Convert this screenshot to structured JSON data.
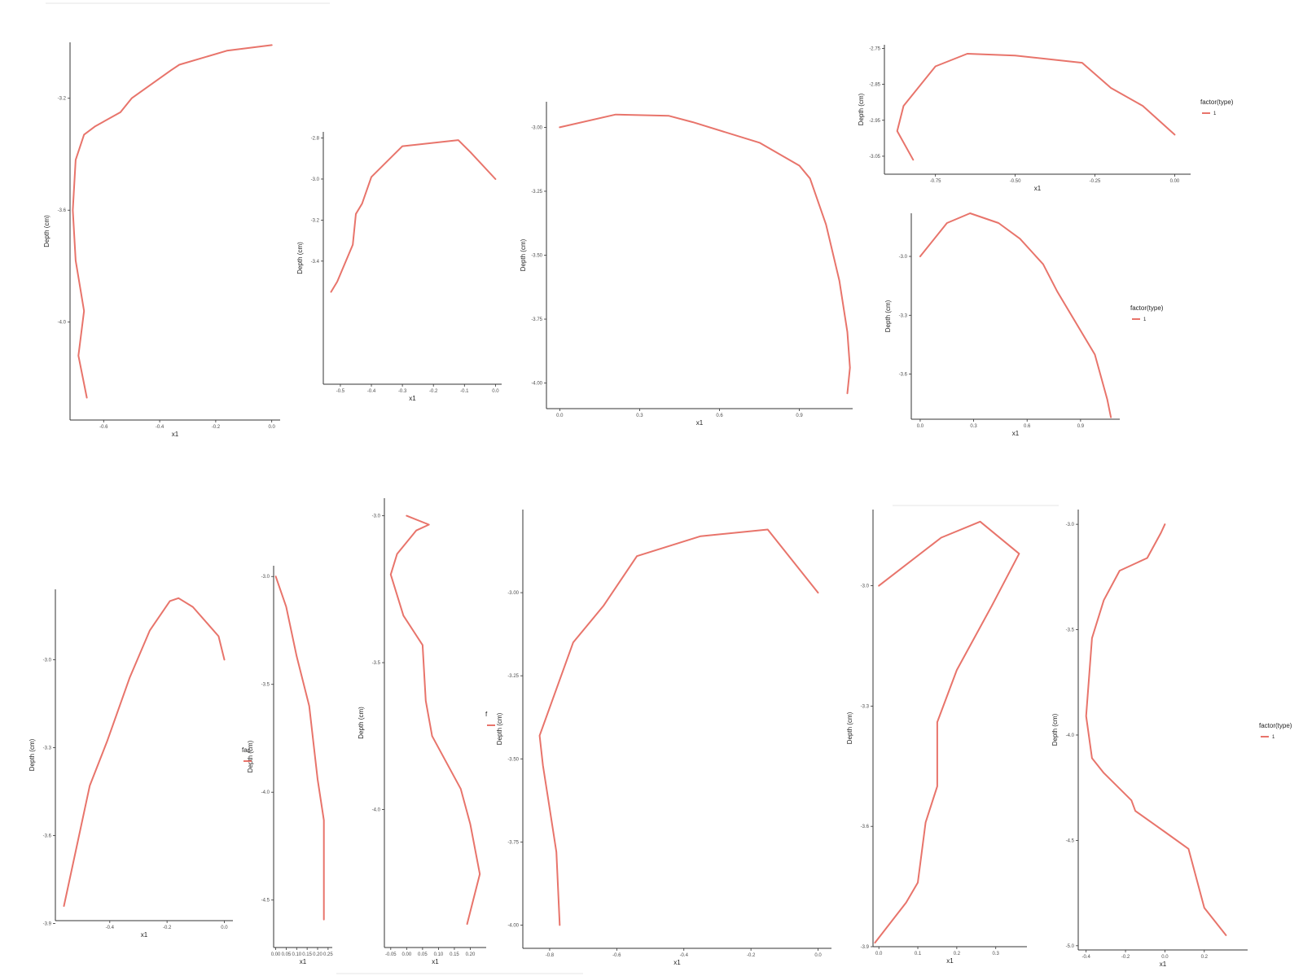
{
  "series_color": "#e8746b",
  "chart_data": [
    {
      "type": "line",
      "xlabel": "x1",
      "ylabel": "Depth (cm)",
      "xlim": [
        -0.72,
        0.03
      ],
      "ylim": [
        -4.35,
        -3.0
      ],
      "xticks": [
        -0.6,
        -0.4,
        -0.2,
        0.0
      ],
      "yticks": [
        -3.2,
        -3.6,
        -4.0
      ],
      "xtick_labels": [
        "-0.6",
        "-0.4",
        "-0.2",
        "0.0"
      ],
      "ytick_labels": [
        "-3.2",
        "-3.6",
        "-4.0"
      ],
      "series": [
        {
          "x": [
            0.0,
            -0.16,
            -0.33,
            -0.36,
            -0.5,
            -0.54,
            -0.63,
            -0.67,
            -0.7,
            -0.71,
            -0.7,
            -0.67,
            -0.69,
            -0.66
          ],
          "y": [
            -3.01,
            -3.03,
            -3.08,
            -3.1,
            -3.2,
            -3.25,
            -3.3,
            -3.33,
            -3.42,
            -3.6,
            -3.78,
            -3.96,
            -4.12,
            -4.27
          ]
        }
      ]
    },
    {
      "type": "line",
      "xlabel": "x1",
      "ylabel": "Depth (cm)",
      "xlim": [
        -0.555,
        0.02
      ],
      "ylim": [
        -4.0,
        -2.77
      ],
      "xticks": [
        -0.5,
        -0.4,
        -0.3,
        -0.2,
        -0.1,
        0.0
      ],
      "yticks": [
        -2.8,
        -3.0,
        -3.2,
        -3.4
      ],
      "xtick_labels": [
        "-0.5",
        "-0.4",
        "-0.3",
        "-0.2",
        "-0.1",
        "0.0"
      ],
      "ytick_labels": [
        "-2.8",
        "-3.0",
        "-3.2",
        "-3.4"
      ],
      "series": [
        {
          "x": [
            0.0,
            -0.08,
            -0.12,
            -0.3,
            -0.4,
            -0.43,
            -0.45,
            -0.46,
            -0.51,
            -0.53
          ],
          "y": [
            -3.0,
            -2.87,
            -2.81,
            -2.84,
            -2.99,
            -3.12,
            -3.17,
            -3.32,
            -3.5,
            -3.55
          ]
        }
      ]
    },
    {
      "type": "line",
      "xlabel": "x1",
      "ylabel": "Depth (cm)",
      "xlim": [
        -0.05,
        1.1
      ],
      "ylim": [
        -4.1,
        -2.9
      ],
      "xticks": [
        0.0,
        0.3,
        0.6,
        0.9
      ],
      "yticks": [
        -3.0,
        -3.25,
        -3.5,
        -3.75,
        -4.0
      ],
      "xtick_labels": [
        "0.0",
        "0.3",
        "0.6",
        "0.9"
      ],
      "ytick_labels": [
        "-3.00",
        "-3.25",
        "-3.50",
        "-3.75",
        "-4.00"
      ],
      "series": [
        {
          "x": [
            0.0,
            0.21,
            0.41,
            0.5,
            0.75,
            0.9,
            0.94,
            1.0,
            1.05,
            1.08,
            1.09,
            1.08
          ],
          "y": [
            -3.0,
            -2.95,
            -2.955,
            -2.98,
            -3.06,
            -3.15,
            -3.2,
            -3.38,
            -3.6,
            -3.8,
            -3.94,
            -4.04
          ]
        }
      ]
    },
    {
      "type": "line",
      "xlabel": "x1",
      "ylabel": "Depth (cm)",
      "xlim": [
        -0.91,
        0.05
      ],
      "ylim": [
        -3.1,
        -2.74
      ],
      "xticks": [
        -0.75,
        -0.5,
        -0.25,
        0.0
      ],
      "yticks": [
        -2.75,
        -2.85,
        -2.95,
        -3.05
      ],
      "xtick_labels": [
        "-0.75",
        "-0.50",
        "-0.25",
        "0.00"
      ],
      "ytick_labels": [
        "-2.75",
        "-2.85",
        "-2.95",
        "-3.05"
      ],
      "legend": {
        "title": "factor(type)",
        "labels": [
          "1"
        ],
        "position": "right"
      },
      "series": [
        {
          "name": "1",
          "x": [
            0.0,
            -0.1,
            -0.2,
            -0.29,
            -0.5,
            -0.65,
            -0.75,
            -0.85,
            -0.87,
            -0.82
          ],
          "y": [
            -2.99,
            -2.91,
            -2.86,
            -2.79,
            -2.77,
            -2.765,
            -2.8,
            -2.91,
            -2.98,
            -3.06
          ]
        }
      ]
    },
    {
      "type": "line",
      "xlabel": "x1",
      "ylabel": "Depth (cm)",
      "xlim": [
        -0.05,
        1.12
      ],
      "ylim": [
        -3.83,
        -2.78
      ],
      "xticks": [
        0.0,
        0.3,
        0.6,
        0.9
      ],
      "yticks": [
        -3.0,
        -3.3,
        -3.6
      ],
      "xtick_labels": [
        "0.0",
        "0.3",
        "0.6",
        "0.9"
      ],
      "ytick_labels": [
        "-3.0",
        "-3.3",
        "-3.6"
      ],
      "legend": {
        "title": "factor(type)",
        "labels": [
          "1"
        ],
        "position": "right"
      },
      "series": [
        {
          "name": "1",
          "x": [
            0.0,
            0.15,
            0.28,
            0.44,
            0.56,
            0.69,
            0.77,
            0.98,
            1.05,
            1.07
          ],
          "y": [
            -3.0,
            -2.83,
            -2.78,
            -2.83,
            -2.91,
            -3.04,
            -3.18,
            -3.5,
            -3.73,
            -3.82
          ]
        }
      ]
    },
    {
      "type": "line",
      "xlabel": "x1",
      "ylabel": "Depth (cm)",
      "xlim": [
        -0.59,
        0.03
      ],
      "ylim": [
        -3.89,
        -2.76
      ],
      "xticks": [
        -0.4,
        -0.2,
        0.0
      ],
      "yticks": [
        -3.0,
        -3.3,
        -3.6,
        -3.9
      ],
      "xtick_labels": [
        "-0.4",
        "-0.2",
        "0.0"
      ],
      "ytick_labels": [
        "-3.0",
        "-3.3",
        "-3.6",
        "-3.9"
      ],
      "series": [
        {
          "x": [
            0.0,
            -0.02,
            -0.11,
            -0.16,
            -0.19,
            -0.26,
            -0.33,
            -0.41,
            -0.47,
            -0.56
          ],
          "y": [
            -3.0,
            -2.92,
            -2.82,
            -2.79,
            -2.8,
            -2.9,
            -3.06,
            -3.28,
            -3.43,
            -3.84
          ]
        }
      ]
    },
    {
      "type": "line",
      "xlabel": "x1",
      "ylabel": "Depth (cm)",
      "xlim": [
        -0.01,
        0.27
      ],
      "ylim": [
        -4.72,
        -2.95
      ],
      "xticks": [
        0.0,
        0.05,
        0.1,
        0.15,
        0.2,
        0.25
      ],
      "yticks": [
        -3.0,
        -3.5,
        -4.0,
        -4.5
      ],
      "xtick_labels": [
        "0.00",
        "0.05",
        "0.10",
        "0.15",
        "0.20",
        "0.25"
      ],
      "ytick_labels": [
        "-3.0",
        "-3.5",
        "-4.0",
        "-4.5"
      ],
      "legend": {
        "title": "fac",
        "labels": [
          ""
        ],
        "position": "left"
      },
      "series": [
        {
          "x": [
            0.0,
            0.05,
            0.1,
            0.16,
            0.2,
            0.23,
            0.23,
            0.23
          ],
          "y": [
            -3.0,
            -3.14,
            -3.37,
            -3.6,
            -3.94,
            -4.13,
            -4.38,
            -4.59
          ]
        }
      ]
    },
    {
      "type": "line",
      "xlabel": "x1",
      "ylabel": "Depth (cm)",
      "xlim": [
        -0.07,
        0.25
      ],
      "ylim": [
        -4.47,
        -2.94
      ],
      "xticks": [
        -0.05,
        0.0,
        0.05,
        0.1,
        0.15,
        0.2
      ],
      "yticks": [
        -3.0,
        -3.5,
        -4.0
      ],
      "xtick_labels": [
        "-0.05",
        "0.00",
        "0.05",
        "0.10",
        "0.15",
        "0.20"
      ],
      "ytick_labels": [
        "-3.0",
        "-3.5",
        "-4.0"
      ],
      "series": [
        {
          "x": [
            0.0,
            0.07,
            0.03,
            -0.03,
            -0.05,
            -0.01,
            0.05,
            0.06,
            0.08,
            0.17,
            0.2,
            0.23,
            0.19
          ],
          "y": [
            -3.0,
            -3.03,
            -3.05,
            -3.13,
            -3.2,
            -3.34,
            -3.44,
            -3.63,
            -3.75,
            -3.93,
            -4.05,
            -4.22,
            -4.39
          ]
        }
      ]
    },
    {
      "type": "line",
      "xlabel": "x1",
      "ylabel": "Depth (cm)",
      "xlim": [
        -0.88,
        0.04
      ],
      "ylim": [
        -4.07,
        -2.75
      ],
      "xticks": [
        -0.8,
        -0.6,
        -0.4,
        -0.2,
        0.0
      ],
      "yticks": [
        -3.0,
        -3.25,
        -3.5,
        -3.75,
        -4.0
      ],
      "xtick_labels": [
        "-0.8",
        "-0.6",
        "-0.4",
        "-0.2",
        "0.0"
      ],
      "ytick_labels": [
        "-3.00",
        "-3.25",
        "-3.50",
        "-3.75",
        "-4.00"
      ],
      "legend": {
        "title": "f",
        "labels": [
          ""
        ],
        "position": "left"
      },
      "series": [
        {
          "x": [
            0.0,
            -0.15,
            -0.35,
            -0.54,
            -0.64,
            -0.73,
            -0.83,
            -0.82,
            -0.8,
            -0.78,
            -0.77
          ],
          "y": [
            -3.0,
            -2.81,
            -2.83,
            -2.89,
            -3.04,
            -3.15,
            -3.43,
            -3.52,
            -3.65,
            -3.78,
            -4.0
          ]
        }
      ]
    },
    {
      "type": "line",
      "xlabel": "x1",
      "ylabel": "Depth (cm)",
      "xlim": [
        -0.015,
        0.38
      ],
      "ylim": [
        -3.9,
        -2.81
      ],
      "xticks": [
        0.0,
        0.1,
        0.2,
        0.3
      ],
      "yticks": [
        -3.0,
        -3.3,
        -3.6,
        -3.9
      ],
      "xtick_labels": [
        "0.0",
        "0.1",
        "0.2",
        "0.3"
      ],
      "ytick_labels": [
        "-3.0",
        "-3.3",
        "-3.6",
        "-3.9"
      ],
      "series": [
        {
          "x": [
            0.0,
            0.16,
            0.26,
            0.36,
            0.29,
            0.2,
            0.15,
            0.15,
            0.15,
            0.12,
            0.1,
            0.07,
            -0.01
          ],
          "y": [
            -3.0,
            -2.88,
            -2.84,
            -2.92,
            -3.05,
            -3.21,
            -3.34,
            -3.41,
            -3.5,
            -3.59,
            -3.74,
            -3.79,
            -3.89
          ]
        }
      ]
    },
    {
      "type": "line",
      "xlabel": "x1",
      "ylabel": "Depth (cm)",
      "xlim": [
        -0.44,
        0.42
      ],
      "ylim": [
        -5.02,
        -2.93
      ],
      "xticks": [
        -0.4,
        -0.2,
        0.0,
        0.2
      ],
      "yticks": [
        -3.0,
        -3.5,
        -4.0,
        -4.5,
        -5.0
      ],
      "xtick_labels": [
        "-0.4",
        "-0.2",
        "0.0",
        "0.2"
      ],
      "ytick_labels": [
        "-3.0",
        "-3.5",
        "-4.0",
        "-4.5",
        "-5.0"
      ],
      "legend": {
        "title": "factor(type)",
        "labels": [
          "1"
        ],
        "position": "right"
      },
      "series": [
        {
          "name": "1",
          "x": [
            0.0,
            -0.02,
            -0.09,
            -0.23,
            -0.31,
            -0.37,
            -0.4,
            -0.37,
            -0.31,
            -0.17,
            -0.15,
            0.0,
            0.12,
            0.2,
            0.31
          ],
          "y": [
            -3.0,
            -3.04,
            -3.16,
            -3.22,
            -3.36,
            -3.54,
            -3.91,
            -4.11,
            -4.18,
            -4.31,
            -4.36,
            -4.46,
            -4.54,
            -4.82,
            -4.95
          ]
        }
      ]
    }
  ]
}
